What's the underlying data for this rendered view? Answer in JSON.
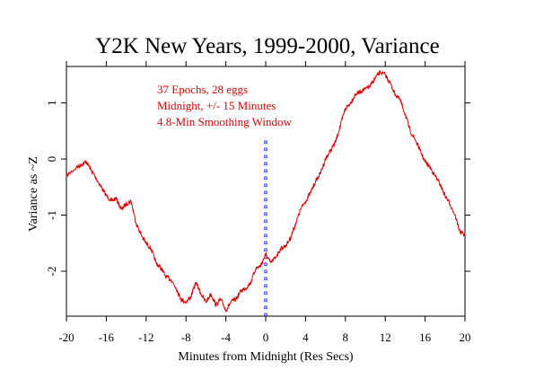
{
  "chart_data": {
    "type": "line",
    "title": "Y2K New Years, 1999-2000, Variance",
    "xlabel": "Minutes from Midnight (Res Secs)",
    "ylabel": "Variance as ~Z",
    "xlim": [
      -20,
      20
    ],
    "ylim": [
      -2.8,
      1.65
    ],
    "x_ticks": [
      -20,
      -16,
      -12,
      -8,
      -4,
      0,
      4,
      8,
      12,
      16,
      20
    ],
    "x_tick_labels": [
      "-20",
      "-16",
      "-12",
      "-8",
      "-4",
      "0",
      "4",
      "8",
      "12",
      "16",
      "20"
    ],
    "y_ticks": [
      1,
      0,
      -1,
      -2
    ],
    "y_tick_labels": [
      "1",
      "0",
      "-1",
      "-2"
    ],
    "annotations": [
      "37 Epochs, 28 eggs",
      "Midnight, +/- 15 Minutes",
      "4.8-Min Smoothing Window"
    ],
    "grid": false,
    "colors": {
      "series": "#e00000",
      "annotation": "#e00000",
      "marker": "#3333ff",
      "axis": "#000000"
    },
    "midnight_marker": {
      "x": 0,
      "y_from": -2.8,
      "y_to": 0.3,
      "style": "dotted"
    },
    "series": [
      {
        "x": [
          -20,
          -19,
          -18.5,
          -18,
          -17.5,
          -17,
          -16.5,
          -16,
          -15.5,
          -15,
          -14.5,
          -14,
          -13.5,
          -13,
          -12.5,
          -12,
          -11.5,
          -11,
          -10.5,
          -10,
          -9.5,
          -9,
          -8.5,
          -8,
          -7.5,
          -7,
          -6.5,
          -6,
          -5.5,
          -5,
          -4.5,
          -4,
          -3.5,
          -3,
          -2.5,
          -2,
          -1.5,
          -1,
          -0.5,
          0,
          0.5,
          1,
          1.5,
          2,
          2.5,
          3,
          3.5,
          4,
          4.5,
          5,
          5.5,
          6,
          6.5,
          7,
          7.5,
          8,
          8.5,
          9,
          9.5,
          10,
          10.5,
          11,
          11.5,
          12,
          12.5,
          13,
          13.5,
          14,
          14.5,
          15,
          15.5,
          16,
          16.5,
          17,
          17.5,
          18,
          18.5,
          19,
          19.5,
          20
        ],
        "y": [
          -0.3,
          -0.15,
          -0.1,
          -0.05,
          -0.2,
          -0.35,
          -0.5,
          -0.65,
          -0.75,
          -0.7,
          -0.9,
          -0.8,
          -0.75,
          -1.15,
          -1.35,
          -1.5,
          -1.6,
          -1.85,
          -1.95,
          -2.1,
          -2.15,
          -2.3,
          -2.5,
          -2.55,
          -2.45,
          -2.2,
          -2.4,
          -2.55,
          -2.4,
          -2.6,
          -2.5,
          -2.7,
          -2.55,
          -2.5,
          -2.35,
          -2.3,
          -2.2,
          -1.95,
          -1.9,
          -1.7,
          -1.85,
          -1.75,
          -1.6,
          -1.55,
          -1.4,
          -1.15,
          -0.9,
          -0.75,
          -0.6,
          -0.4,
          -0.25,
          0,
          0.15,
          0.3,
          0.6,
          0.9,
          1.0,
          1.15,
          1.2,
          1.25,
          1.3,
          1.45,
          1.55,
          1.5,
          1.35,
          1.15,
          1.05,
          0.8,
          0.5,
          0.35,
          0.15,
          -0.05,
          -0.15,
          -0.3,
          -0.45,
          -0.65,
          -0.8,
          -1.0,
          -1.3,
          -1.35
        ]
      }
    ]
  }
}
